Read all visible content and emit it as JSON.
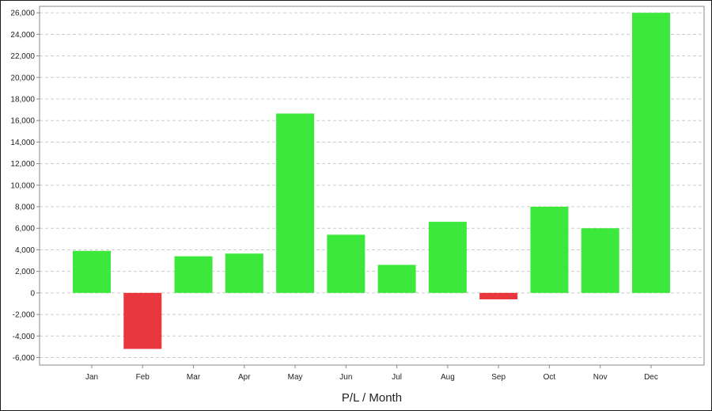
{
  "chart_data": {
    "type": "bar",
    "title": "",
    "xlabel": "P/L / Month",
    "ylabel": "",
    "categories": [
      "Jan",
      "Feb",
      "Mar",
      "Apr",
      "May",
      "Jun",
      "Jul",
      "Aug",
      "Sep",
      "Oct",
      "Nov",
      "Dec"
    ],
    "values": [
      3900,
      -5200,
      3400,
      3650,
      16650,
      5400,
      2600,
      6600,
      -600,
      8000,
      6000,
      26000
    ],
    "ylim": [
      -6700,
      26600
    ],
    "yticks": [
      -6000,
      -4000,
      -2000,
      0,
      2000,
      4000,
      6000,
      8000,
      10000,
      12000,
      14000,
      16000,
      18000,
      20000,
      22000,
      24000,
      26000
    ],
    "ytick_labels": [
      "-6,000",
      "-4,000",
      "-2,000",
      "0",
      "2,000",
      "4,000",
      "6,000",
      "8,000",
      "10,000",
      "12,000",
      "14,000",
      "16,000",
      "18,000",
      "20,000",
      "22,000",
      "24,000",
      "26,000"
    ],
    "grid": true,
    "colors": {
      "positive": "#3de83d",
      "negative": "#e8383d",
      "grid": "#cccccc",
      "axis": "#888888"
    }
  }
}
